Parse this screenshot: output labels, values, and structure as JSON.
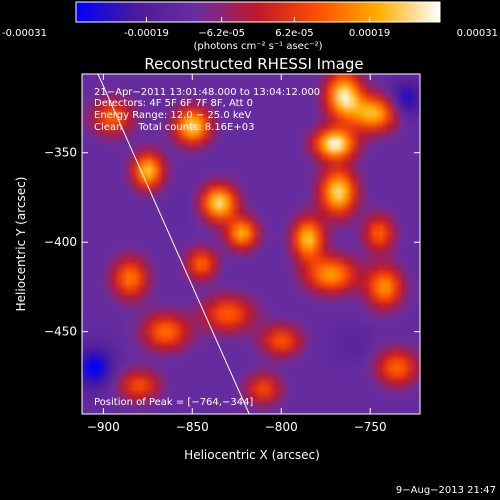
{
  "chart_data": {
    "type": "heatmap",
    "title": "Reconstructed RHESSI Image",
    "xlabel": "Heliocentric X (arcsec)",
    "ylabel": "Heliocentric Y (arcsec)",
    "xlim": [
      -912,
      -722
    ],
    "ylim": [
      -496,
      -306
    ],
    "x_ticks": [
      -900,
      -850,
      -800,
      -750
    ],
    "y_ticks": [
      -350,
      -400,
      -450
    ],
    "x_tick_labels": [
      "−900",
      "−850",
      "−800",
      "−750"
    ],
    "y_tick_labels": [
      "−350",
      "−400",
      "−450"
    ],
    "colorbar": {
      "min": -0.00031,
      "max": 0.00031,
      "ticks": [
        -0.00031,
        -0.00019,
        -6.2e-05,
        6.2e-05,
        0.00019,
        0.00031
      ],
      "tick_labels": [
        "-0.00031",
        "-0.00019",
        "−6.2e-05",
        "6.2e-05",
        "0.00019",
        "0.00031"
      ],
      "unit_label": "(photons cm⁻² s⁻¹ asec⁻²)",
      "colors": [
        "#0000ff",
        "#4b1b9a",
        "#6a2ea0",
        "#c0182a",
        "#ff5000",
        "#ffb000",
        "#ffffff"
      ]
    },
    "annotations": {
      "time": "21−Apr−2011 13:01:48.000 to 13:04:12.000",
      "detectors": "Detectors: 4F 5F 6F 7F 8F, Att 0",
      "energy": "Energy Range: 12.0 − 25.0 keV",
      "clean": "Clean     Total counts: 8.16E+03",
      "peak": "Position of Peak = [−764,−344]"
    },
    "peak_position": [
      -764,
      -344
    ],
    "limb_line": [
      [
        -903,
        -306
      ],
      [
        -818,
        -496
      ]
    ],
    "blobs": [
      {
        "x": -765,
        "y": -318,
        "sx": 7,
        "sy": 9,
        "v": 0.00028
      },
      {
        "x": -770,
        "y": -345,
        "sx": 8,
        "sy": 6,
        "v": 0.00031
      },
      {
        "x": -768,
        "y": -372,
        "sx": 7,
        "sy": 9,
        "v": 0.00027
      },
      {
        "x": -748,
        "y": -328,
        "sx": 9,
        "sy": 7,
        "v": 0.00022
      },
      {
        "x": -785,
        "y": -398,
        "sx": 6,
        "sy": 8,
        "v": 0.00024
      },
      {
        "x": -772,
        "y": -418,
        "sx": 10,
        "sy": 7,
        "v": 0.00019
      },
      {
        "x": -742,
        "y": -425,
        "sx": 7,
        "sy": 8,
        "v": 0.00018
      },
      {
        "x": -850,
        "y": -335,
        "sx": 7,
        "sy": 7,
        "v": 0.00026
      },
      {
        "x": -835,
        "y": -378,
        "sx": 7,
        "sy": 7,
        "v": 0.00027
      },
      {
        "x": -822,
        "y": -395,
        "sx": 6,
        "sy": 6,
        "v": 0.00021
      },
      {
        "x": -875,
        "y": -360,
        "sx": 6,
        "sy": 7,
        "v": 0.00024
      },
      {
        "x": -895,
        "y": -330,
        "sx": 8,
        "sy": 7,
        "v": 0.00012
      },
      {
        "x": -885,
        "y": -420,
        "sx": 7,
        "sy": 8,
        "v": 0.00015
      },
      {
        "x": -865,
        "y": -450,
        "sx": 9,
        "sy": 7,
        "v": 0.00014
      },
      {
        "x": -845,
        "y": -412,
        "sx": 6,
        "sy": 6,
        "v": 0.00013
      },
      {
        "x": -830,
        "y": -440,
        "sx": 10,
        "sy": 7,
        "v": 0.00012
      },
      {
        "x": -800,
        "y": -455,
        "sx": 8,
        "sy": 6,
        "v": 0.00011
      },
      {
        "x": -810,
        "y": -482,
        "sx": 7,
        "sy": 6,
        "v": 9e-05
      },
      {
        "x": -735,
        "y": -470,
        "sx": 8,
        "sy": 7,
        "v": 0.00013
      },
      {
        "x": -880,
        "y": -480,
        "sx": 8,
        "sy": 6,
        "v": 0.0001
      },
      {
        "x": -745,
        "y": -395,
        "sx": 6,
        "sy": 7,
        "v": 0.00012
      },
      {
        "x": -905,
        "y": -470,
        "sx": 7,
        "sy": 8,
        "v": -0.00031
      },
      {
        "x": -730,
        "y": -320,
        "sx": 6,
        "sy": 7,
        "v": -0.00028
      },
      {
        "x": -900,
        "y": -395,
        "sx": 6,
        "sy": 7,
        "v": -0.00012
      },
      {
        "x": -855,
        "y": -380,
        "sx": 6,
        "sy": 7,
        "v": -0.00014
      },
      {
        "x": -805,
        "y": -362,
        "sx": 7,
        "sy": 8,
        "v": -0.00012
      },
      {
        "x": -790,
        "y": -430,
        "sx": 6,
        "sy": 7,
        "v": -0.00012
      },
      {
        "x": -760,
        "y": -458,
        "sx": 7,
        "sy": 7,
        "v": -0.00016
      },
      {
        "x": -850,
        "y": -470,
        "sx": 6,
        "sy": 6,
        "v": -0.00012
      },
      {
        "x": -820,
        "y": -330,
        "sx": 6,
        "sy": 6,
        "v": -0.00011
      },
      {
        "x": -728,
        "y": -445,
        "sx": 6,
        "sy": 7,
        "v": -0.00012
      }
    ]
  },
  "footer": {
    "timestamp": "9−Aug−2013 21:47"
  }
}
